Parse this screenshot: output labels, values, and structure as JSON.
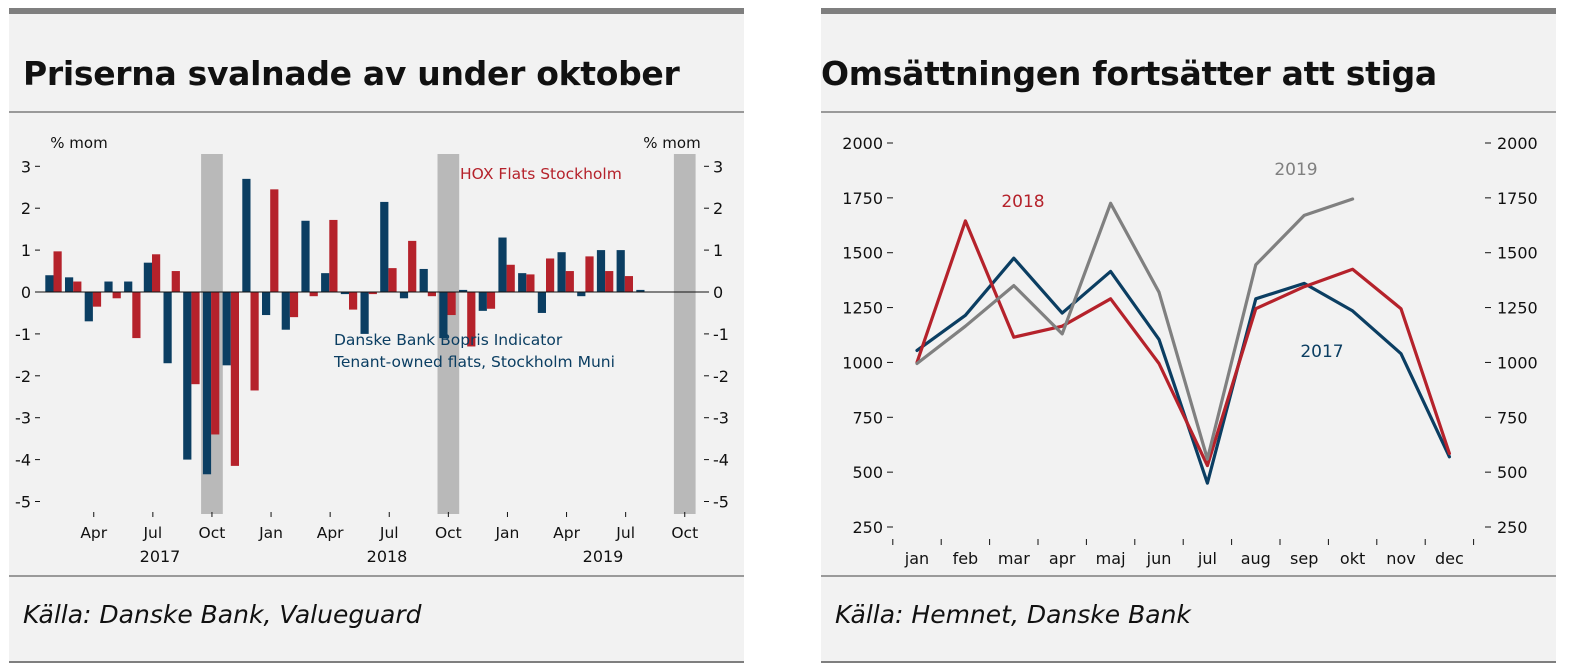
{
  "left_panel": {
    "title": "Priserna svalnade av under oktober",
    "source": "Källa: Danske Bank, Valueguard",
    "unit_left": "% mom",
    "unit_right": "% mom",
    "legend_hox": "HOX Flats Stockholm",
    "legend_db_line1": "Danske Bank Bopris Indicator",
    "legend_db_line2": "Tenant-owned flats, Stockholm Muni",
    "year_labels": [
      "2017",
      "2018",
      "2019"
    ]
  },
  "right_panel": {
    "title": "Omsättningen fortsätter att stiga",
    "source": "Källa: Hemnet, Danske Bank",
    "label_2018": "2018",
    "label_2019": "2019",
    "label_2017": "2017"
  },
  "colors": {
    "blue": "#0b3e62",
    "red": "#b5222b",
    "gray": "#808080",
    "shade": "#b9b9b9"
  },
  "chart_data": [
    {
      "type": "bar",
      "title": "Priserna svalnade av under oktober",
      "ylabel": "% mom",
      "ylim": [
        -5.5,
        3.5
      ],
      "yticks": [
        3,
        2,
        1,
        0,
        -1,
        -2,
        -3,
        -4,
        -5
      ],
      "months": [
        "Feb 2017",
        "Mar 2017",
        "Apr 2017",
        "May 2017",
        "Jun 2017",
        "Jul 2017",
        "Aug 2017",
        "Sep 2017",
        "Oct 2017",
        "Nov 2017",
        "Dec 2017",
        "Jan 2018",
        "Feb 2018",
        "Mar 2018",
        "Apr 2018",
        "May 2018",
        "Jun 2018",
        "Jul 2018",
        "Aug 2018",
        "Sep 2018",
        "Oct 2018",
        "Nov 2018",
        "Dec 2018",
        "Jan 2019",
        "Feb 2019",
        "Mar 2019",
        "Apr 2019",
        "May 2019",
        "Jun 2019",
        "Jul 2019",
        "Aug 2019",
        "Sep 2019",
        "Oct 2019"
      ],
      "x_tick_labels": [
        "Apr",
        "Jul",
        "Oct",
        "Jan",
        "Apr",
        "Jul",
        "Oct",
        "Jan",
        "Apr",
        "Jul",
        "Oct"
      ],
      "x_tick_months": [
        "Apr 2017",
        "Jul 2017",
        "Oct 2017",
        "Jan 2018",
        "Apr 2018",
        "Jul 2018",
        "Oct 2018",
        "Jan 2019",
        "Apr 2019",
        "Jul 2019",
        "Oct 2019"
      ],
      "shaded_months": [
        "Oct 2017",
        "Oct 2018",
        "Oct 2019"
      ],
      "series": [
        {
          "name": "Danske Bank Bopris Indicator Tenant-owned flats, Stockholm Muni",
          "color": "#0b3e62",
          "values": [
            0.4,
            0.35,
            -0.7,
            0.25,
            0.25,
            0.7,
            -1.7,
            -4.0,
            -4.35,
            -1.75,
            2.7,
            -0.55,
            -0.9,
            1.7,
            0.45,
            -0.05,
            -1.0,
            2.15,
            -0.15,
            0.55,
            -1.1,
            0.05,
            -0.45,
            1.3,
            0.45,
            -0.5,
            0.95,
            -0.1,
            1.0,
            1.0,
            0.05,
            null,
            null
          ]
        },
        {
          "name": "HOX Flats Stockholm",
          "color": "#b5222b",
          "values": [
            0.97,
            0.25,
            -0.35,
            -0.15,
            -1.1,
            0.9,
            0.5,
            -2.2,
            -3.4,
            -4.15,
            -2.35,
            2.45,
            -0.6,
            -0.1,
            1.72,
            -0.42,
            -0.05,
            0.57,
            1.22,
            -0.1,
            -0.55,
            -1.3,
            -0.4,
            0.65,
            0.42,
            0.8,
            0.5,
            0.85,
            0.5,
            0.38,
            null,
            null,
            null
          ]
        }
      ]
    },
    {
      "type": "line",
      "title": "Omsättningen fortsätter att stiga",
      "categories": [
        "jan",
        "feb",
        "mar",
        "apr",
        "maj",
        "jun",
        "jul",
        "aug",
        "sep",
        "okt",
        "nov",
        "dec"
      ],
      "ylim": [
        250,
        2000
      ],
      "yticks": [
        2000,
        1750,
        1500,
        1250,
        1000,
        750,
        500,
        250
      ],
      "series": [
        {
          "name": "2017",
          "color": "#0b3e62",
          "values": [
            1055,
            1215,
            1475,
            1225,
            1415,
            1105,
            450,
            1290,
            1360,
            1235,
            1040,
            570
          ]
        },
        {
          "name": "2018",
          "color": "#b5222b",
          "values": [
            1000,
            1645,
            1115,
            1165,
            1290,
            995,
            530,
            1245,
            1345,
            1425,
            1245,
            585
          ]
        },
        {
          "name": "2019",
          "color": "#808080",
          "values": [
            995,
            1165,
            1350,
            1130,
            1725,
            1320,
            560,
            1445,
            1670,
            1745,
            null,
            null
          ]
        }
      ]
    }
  ]
}
